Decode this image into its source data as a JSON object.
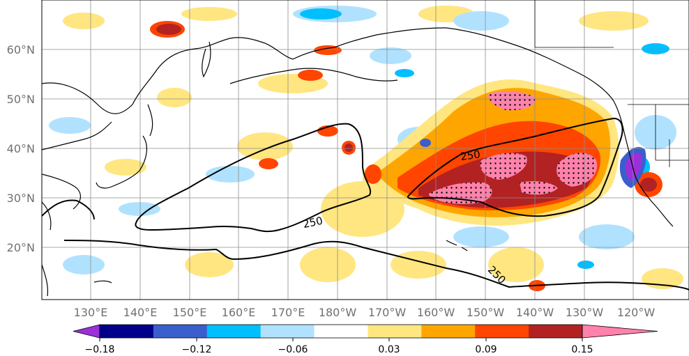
{
  "map": {
    "lat_labels": [
      "60°N",
      "50°N",
      "40°N",
      "30°N",
      "20°N"
    ],
    "lon_labels": [
      "130°E",
      "140°E",
      "150°E",
      "160°E",
      "170°E",
      "180°W",
      "170°W",
      "160°W",
      "150°W",
      "140°W",
      "130°W",
      "120°W"
    ],
    "contour_label": "250",
    "contour_color": "#000000"
  },
  "colorbar": {
    "colors": [
      "#9b30d9",
      "#00008b",
      "#3a5fcd",
      "#00bfff",
      "#b0e2ff",
      "#ffffff",
      "#ffe680",
      "#ffa500",
      "#ff4500",
      "#b22222",
      "#ff82ab"
    ],
    "ticks": [
      "−0.18",
      "−0.12",
      "−0.06",
      "0.03",
      "0.09",
      "0.15"
    ]
  }
}
